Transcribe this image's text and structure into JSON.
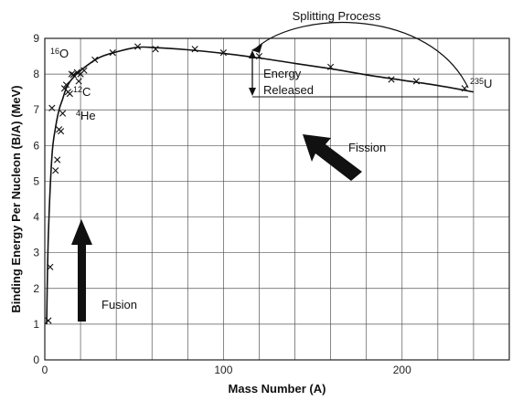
{
  "chart_data": {
    "type": "line",
    "title": "",
    "xlabel": "Mass Number (A)",
    "ylabel": "Binding Energy Per Nucleon (B/A) (MeV)",
    "xlim": [
      0,
      260
    ],
    "ylim": [
      0,
      9
    ],
    "x_ticks": [
      0,
      100,
      200
    ],
    "y_ticks": [
      0,
      1,
      2,
      3,
      4,
      5,
      6,
      7,
      8,
      9
    ],
    "x_grid_step": 20,
    "grid": true,
    "series": [
      {
        "points": [
          [
            2,
            1.1
          ],
          [
            3,
            2.6
          ],
          [
            4,
            7.05
          ],
          [
            6,
            5.3
          ],
          [
            7,
            5.6
          ],
          [
            8,
            6.45
          ],
          [
            9,
            6.4
          ],
          [
            10,
            6.9
          ],
          [
            11,
            7.6
          ],
          [
            12,
            7.7
          ],
          [
            13,
            7.5
          ],
          [
            14,
            7.45
          ],
          [
            15,
            8.0
          ],
          [
            16,
            7.98
          ],
          [
            18,
            8.05
          ],
          [
            19,
            7.8
          ],
          [
            20,
            8.0
          ],
          [
            22,
            8.1
          ],
          [
            28,
            8.4
          ],
          [
            38,
            8.6
          ],
          [
            52,
            8.77
          ],
          [
            62,
            8.7
          ],
          [
            84,
            8.7
          ],
          [
            100,
            8.6
          ],
          [
            120,
            8.5
          ],
          [
            160,
            8.2
          ],
          [
            194,
            7.85
          ],
          [
            208,
            7.8
          ],
          [
            235,
            7.6
          ]
        ],
        "marker": "x",
        "curve_points": [
          [
            1,
            1.0
          ],
          [
            2,
            3.5
          ],
          [
            4,
            5.7
          ],
          [
            6,
            6.5
          ],
          [
            8,
            7.0
          ],
          [
            10,
            7.3
          ],
          [
            12,
            7.6
          ],
          [
            15,
            7.85
          ],
          [
            20,
            8.1
          ],
          [
            30,
            8.45
          ],
          [
            40,
            8.62
          ],
          [
            52,
            8.75
          ],
          [
            62,
            8.74
          ],
          [
            80,
            8.68
          ],
          [
            100,
            8.58
          ],
          [
            120,
            8.45
          ],
          [
            140,
            8.3
          ],
          [
            160,
            8.15
          ],
          [
            180,
            7.98
          ],
          [
            200,
            7.83
          ],
          [
            220,
            7.68
          ],
          [
            240,
            7.5
          ]
        ]
      }
    ],
    "isotope_labels": [
      {
        "mass": "16",
        "symbol": "O"
      },
      {
        "mass": "12",
        "symbol": "C"
      },
      {
        "mass": "4",
        "symbol": "He"
      },
      {
        "mass": "235",
        "symbol": "U"
      }
    ],
    "annotations": {
      "splitting": "Splitting Process",
      "energy_line1": "Energy",
      "energy_line2": "Released",
      "fission": "Fission",
      "fusion": "Fusion"
    }
  }
}
